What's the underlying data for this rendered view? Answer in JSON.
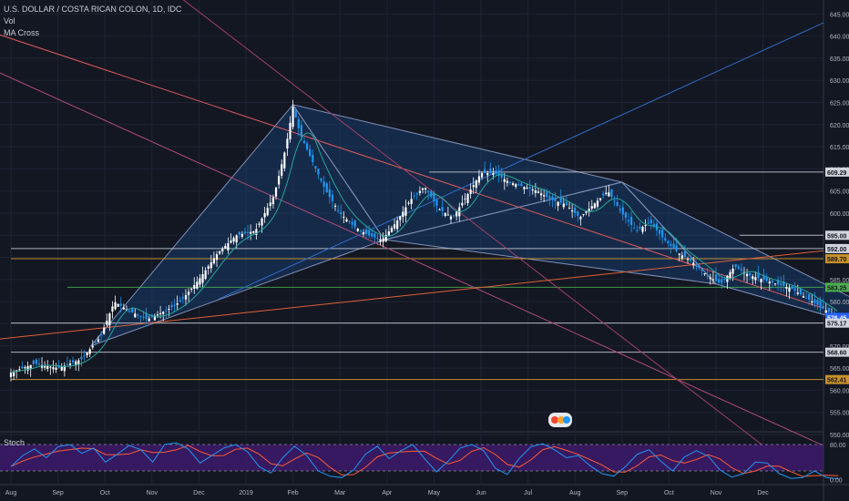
{
  "legend": {
    "symbol": "U.S. DOLLAR / COSTA RICAN COLON, 1D, IDC",
    "vol": "Vol",
    "ma": "MA Cross"
  },
  "stoch_label": "Stoch",
  "colors": {
    "background": "#131722",
    "up": "#ffffff",
    "down": "#2196f3",
    "ma": "#26a69a",
    "triangle_fill": "#1b4a86",
    "white_line": "#c9cdd6",
    "orange_line": "#e0a030",
    "green_line": "#4caf50",
    "stoch_bg": "#3d1a6b",
    "stoch_k": "#2196f3",
    "stoch_d": "#ff5a36"
  },
  "chart_data": {
    "type": "candlestick",
    "title": "U.S. DOLLAR / COSTA RICAN COLON, 1D, IDC",
    "x_ticks": [
      "Aug",
      "Sep",
      "Oct",
      "Nov",
      "Dec",
      "2019",
      "Feb",
      "Mar",
      "Apr",
      "May",
      "Jun",
      "Jul",
      "Aug",
      "Sep",
      "Oct",
      "Nov",
      "Dec"
    ],
    "y_ticks": [
      "650.00",
      "645.00",
      "640.00",
      "635.00",
      "630.00",
      "625.00",
      "620.00",
      "615.00",
      "610.00",
      "605.00",
      "600.00",
      "595.00",
      "590.00",
      "585.00",
      "580.00",
      "575.00",
      "570.00",
      "565.00",
      "560.00",
      "555.00",
      "550.00"
    ],
    "ylim": [
      545,
      651
    ],
    "series": [
      {
        "name": "Close",
        "values": [
          [
            0,
            564
          ],
          [
            0.5,
            566
          ],
          [
            1,
            565
          ],
          [
            1.5,
            567
          ],
          [
            1.9,
            572
          ],
          [
            2.2,
            580
          ],
          [
            2.5,
            578
          ],
          [
            2.9,
            576
          ],
          [
            3.3,
            578
          ],
          [
            3.6,
            580
          ],
          [
            4.0,
            585
          ],
          [
            4.4,
            591
          ],
          [
            4.8,
            595
          ],
          [
            5.2,
            596
          ],
          [
            5.6,
            604
          ],
          [
            5.85,
            615
          ],
          [
            6.0,
            624
          ],
          [
            6.15,
            618
          ],
          [
            6.4,
            612
          ],
          [
            6.7,
            605
          ],
          [
            7.0,
            600
          ],
          [
            7.3,
            597
          ],
          [
            7.6,
            595
          ],
          [
            7.9,
            594
          ],
          [
            8.2,
            598
          ],
          [
            8.5,
            603
          ],
          [
            8.8,
            606
          ],
          [
            9.1,
            601
          ],
          [
            9.4,
            599
          ],
          [
            9.7,
            604
          ],
          [
            10.0,
            609
          ],
          [
            10.3,
            609
          ],
          [
            10.6,
            607
          ],
          [
            10.9,
            606
          ],
          [
            11.2,
            605
          ],
          [
            11.5,
            603
          ],
          [
            11.8,
            602
          ],
          [
            12.1,
            599
          ],
          [
            12.4,
            602
          ],
          [
            12.7,
            605
          ],
          [
            13.0,
            600
          ],
          [
            13.3,
            596
          ],
          [
            13.6,
            598
          ],
          [
            13.9,
            594
          ],
          [
            14.2,
            591
          ],
          [
            14.5,
            589
          ],
          [
            14.8,
            586
          ],
          [
            15.1,
            584
          ],
          [
            15.4,
            588
          ],
          [
            15.7,
            586
          ],
          [
            16.0,
            585
          ],
          [
            16.3,
            584
          ],
          [
            16.6,
            583
          ],
          [
            16.9,
            581
          ],
          [
            17.2,
            579
          ],
          [
            17.45,
            577.3
          ],
          [
            17.6,
            575.2
          ]
        ]
      }
    ],
    "price_labels": [
      {
        "value": "609.29",
        "price": 609.29,
        "color": "white"
      },
      {
        "value": "595.00",
        "price": 595.0,
        "color": "white"
      },
      {
        "value": "592.00",
        "price": 592.0,
        "color": "white"
      },
      {
        "value": "589.70",
        "price": 589.7,
        "color": "orange"
      },
      {
        "value": "583.25",
        "price": 583.25,
        "color": "green"
      },
      {
        "value": "576.45",
        "price": 576.45,
        "color": "blue"
      },
      {
        "value": "575.17",
        "price": 575.17,
        "color": "white"
      },
      {
        "value": "568.60",
        "price": 568.6,
        "color": "white"
      },
      {
        "value": "562.41",
        "price": 562.41,
        "color": "orange"
      }
    ],
    "stoch": {
      "y_ticks": [
        "80.00",
        "0.00"
      ],
      "levels": [
        80,
        20
      ],
      "k": [
        30,
        55,
        70,
        50,
        75,
        80,
        60,
        72,
        40,
        58,
        78,
        68,
        40,
        80,
        84,
        70,
        38,
        55,
        72,
        80,
        64,
        30,
        15,
        50,
        76,
        56,
        20,
        8,
        5,
        22,
        58,
        76,
        48,
        66,
        80,
        48,
        18,
        42,
        72,
        80,
        66,
        26,
        12,
        48,
        75,
        82,
        68,
        50,
        55,
        32,
        14,
        8,
        30,
        58,
        68,
        42,
        20,
        52,
        66,
        54,
        22,
        6,
        14,
        40,
        38,
        14,
        3,
        5,
        20,
        5,
        2
      ]
    }
  }
}
